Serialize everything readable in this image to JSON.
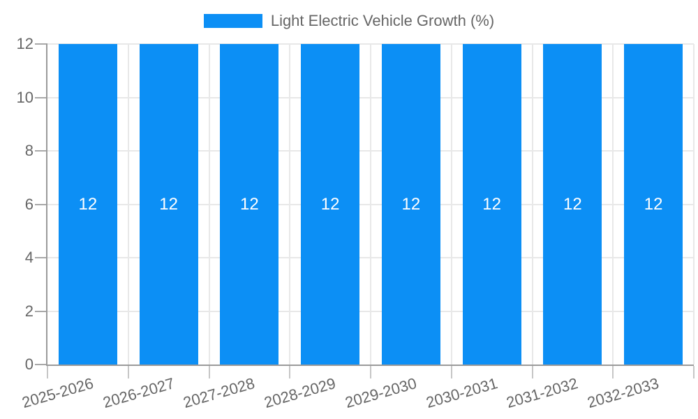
{
  "legend": {
    "label": "Light Electric Vehicle Growth (%)"
  },
  "chart_data": {
    "type": "bar",
    "title": "Light Electric Vehicle Growth (%)",
    "series_name": "Light Electric Vehicle Growth (%)",
    "categories": [
      "2025-2026",
      "2026-2027",
      "2027-2028",
      "2028-2029",
      "2029-2030",
      "2030-2031",
      "2031-2032",
      "2032-2033"
    ],
    "values": [
      12,
      12,
      12,
      12,
      12,
      12,
      12,
      12
    ],
    "xlabel": "",
    "ylabel": "",
    "ylim": [
      0,
      12
    ],
    "yticks": [
      0,
      2,
      4,
      6,
      8,
      10,
      12
    ],
    "grid": "on",
    "legend_position": "top-center",
    "colors": {
      "bar": "#0c8ff5",
      "grid": "#e8e8e8",
      "axis": "#9a9a9a",
      "tick_text": "#666666",
      "bar_label_text": "#ffffff"
    }
  }
}
